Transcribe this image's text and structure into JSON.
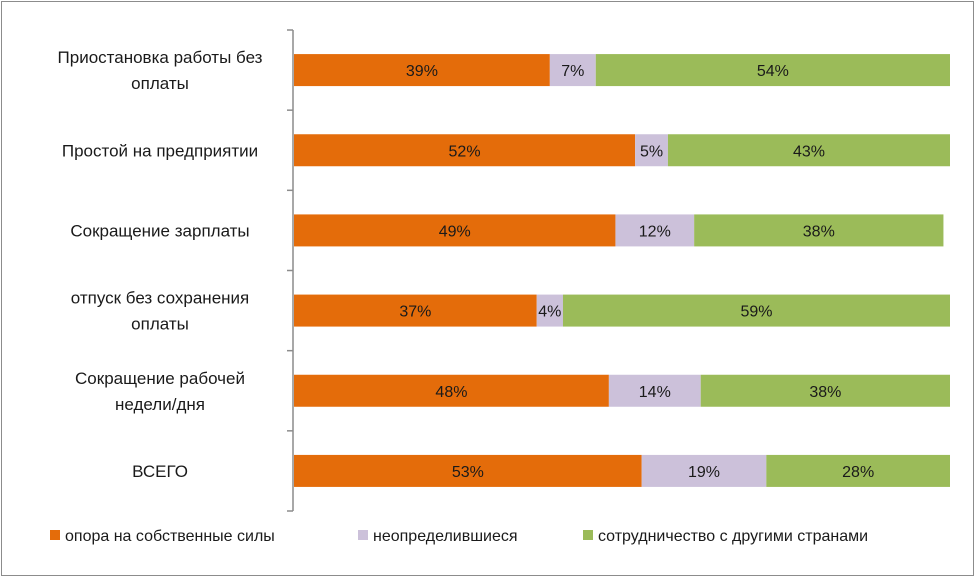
{
  "chart_data": {
    "type": "bar",
    "orientation": "horizontal",
    "stacked": "percent",
    "title": "",
    "xlabel": "",
    "ylabel": "",
    "xlim": [
      0,
      100
    ],
    "grid": false,
    "legend_position": "bottom",
    "categories": [
      [
        "Приостановка работы без",
        "оплаты"
      ],
      [
        "Простой на предприятии"
      ],
      [
        "Сокращение зарплаты"
      ],
      [
        "отпуск без сохранения",
        "оплаты"
      ],
      [
        "Сокращение рабочей",
        "недели/дня"
      ],
      [
        "ВСЕГО"
      ]
    ],
    "series": [
      {
        "name": "опора на собственные силы",
        "color": "#e46c0a",
        "values": [
          39,
          52,
          49,
          37,
          48,
          53
        ]
      },
      {
        "name": "неопределившиеся",
        "color": "#ccc1da",
        "values": [
          7,
          5,
          12,
          4,
          14,
          19
        ]
      },
      {
        "name": "сотрудничество с другими странами",
        "color": "#9bbb59",
        "values": [
          54,
          43,
          38,
          59,
          38,
          28
        ]
      }
    ],
    "value_suffix": "%"
  }
}
